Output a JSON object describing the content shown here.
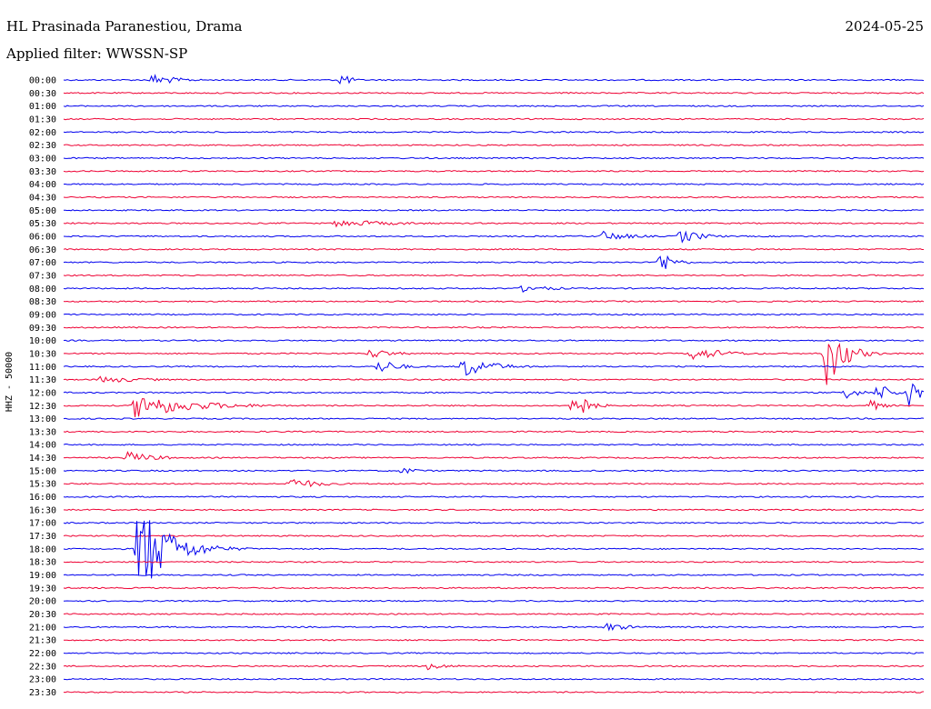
{
  "header": {
    "station": "HL Prasinada Paranestiou, Drama",
    "date": "2024-05-25",
    "filter": "Applied filter: WWSSN-SP",
    "channel": "HHZ - 50000"
  },
  "colors": {
    "blue": "#0000ee",
    "red": "#ee0033"
  },
  "chart_data": {
    "type": "line",
    "title": "HL Prasinada Paranestiou, Drama",
    "ylabel": "HHZ - 50000",
    "rows": [
      "00:00",
      "00:30",
      "01:00",
      "01:30",
      "02:00",
      "02:30",
      "03:00",
      "03:30",
      "04:00",
      "04:30",
      "05:00",
      "05:30",
      "06:00",
      "06:30",
      "07:00",
      "07:30",
      "08:00",
      "08:30",
      "09:00",
      "09:30",
      "10:00",
      "10:30",
      "11:00",
      "11:30",
      "12:00",
      "12:30",
      "13:00",
      "13:30",
      "14:00",
      "14:30",
      "15:00",
      "15:30",
      "16:00",
      "16:30",
      "17:00",
      "17:30",
      "18:00",
      "18:30",
      "19:00",
      "19:30",
      "20:00",
      "20:30",
      "21:00",
      "21:30",
      "22:00",
      "22:30",
      "23:00",
      "23:30"
    ],
    "row_colors": [
      "blue",
      "red"
    ],
    "x_span_minutes": 30,
    "events": [
      {
        "row": "00:00",
        "minute": 3.1,
        "amp": 7,
        "dur": 1.3
      },
      {
        "row": "00:00",
        "minute": 9.7,
        "amp": 11,
        "dur": 0.4
      },
      {
        "row": "05:30",
        "minute": 9.5,
        "amp": 4,
        "dur": 3.5
      },
      {
        "row": "06:00",
        "minute": 18.8,
        "amp": 6,
        "dur": 1.5
      },
      {
        "row": "06:00",
        "minute": 21.5,
        "amp": 8,
        "dur": 1.2
      },
      {
        "row": "07:00",
        "minute": 20.8,
        "amp": 14,
        "dur": 0.7
      },
      {
        "row": "08:00",
        "minute": 16.0,
        "amp": 4,
        "dur": 1.8
      },
      {
        "row": "10:30",
        "minute": 10.7,
        "amp": 6,
        "dur": 1.2
      },
      {
        "row": "10:30",
        "minute": 21.9,
        "amp": 8,
        "dur": 1.8
      },
      {
        "row": "10:30",
        "minute": 26.6,
        "amp": 40,
        "dur": 0.9
      },
      {
        "row": "11:00",
        "minute": 11.0,
        "amp": 9,
        "dur": 1.0
      },
      {
        "row": "11:00",
        "minute": 13.9,
        "amp": 13,
        "dur": 1.5
      },
      {
        "row": "11:30",
        "minute": 1.3,
        "amp": 4,
        "dur": 2.5
      },
      {
        "row": "12:00",
        "minute": 27.3,
        "amp": 9,
        "dur": 0.6
      },
      {
        "row": "12:00",
        "minute": 28.4,
        "amp": 12,
        "dur": 0.7
      },
      {
        "row": "12:00",
        "minute": 29.5,
        "amp": 22,
        "dur": 0.5
      },
      {
        "row": "12:30",
        "minute": 2.5,
        "amp": 14,
        "dur": 3.0
      },
      {
        "row": "12:30",
        "minute": 17.7,
        "amp": 24,
        "dur": 0.7
      },
      {
        "row": "12:30",
        "minute": 28.1,
        "amp": 7,
        "dur": 0.7
      },
      {
        "row": "14:30",
        "minute": 2.2,
        "amp": 7,
        "dur": 1.5
      },
      {
        "row": "15:00",
        "minute": 11.8,
        "amp": 4,
        "dur": 1.0
      },
      {
        "row": "15:30",
        "minute": 7.9,
        "amp": 7,
        "dur": 1.5
      },
      {
        "row": "18:00",
        "minute": 2.6,
        "amp": 55,
        "dur": 1.6
      },
      {
        "row": "21:00",
        "minute": 18.9,
        "amp": 5,
        "dur": 1.3
      },
      {
        "row": "22:30",
        "minute": 12.7,
        "amp": 4,
        "dur": 1.3
      }
    ]
  }
}
